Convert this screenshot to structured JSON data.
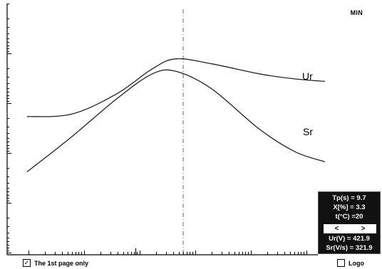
{
  "mode_label": "MIN",
  "info_panel": {
    "tp": "Tp(s) = 9.7",
    "x": "X[%] = 3.3",
    "t": "t(°C) =20",
    "nav_prev": "<",
    "nav_next": ">",
    "ur": "Ur(V) = 421.9",
    "sr": "Sr(V/s) = 321.9"
  },
  "footer": {
    "first_page_only_label": "The 1st page only",
    "first_page_only_checked": true,
    "logo_label": "Logo",
    "logo_checked": false
  },
  "chart_data": {
    "type": "line",
    "title": "",
    "xlabel": "",
    "ylabel": "",
    "x_scale": "log",
    "grid": false,
    "cursor_x": 0.5,
    "series": [
      {
        "name": "Ur",
        "points": [
          [
            0.0,
            0.55
          ],
          [
            0.15,
            0.56
          ],
          [
            0.3,
            0.64
          ],
          [
            0.42,
            0.74
          ],
          [
            0.5,
            0.78
          ],
          [
            0.62,
            0.76
          ],
          [
            0.78,
            0.72
          ],
          [
            0.9,
            0.7
          ],
          [
            1.0,
            0.69
          ]
        ]
      },
      {
        "name": "Sr",
        "points": [
          [
            0.0,
            0.33
          ],
          [
            0.15,
            0.47
          ],
          [
            0.3,
            0.62
          ],
          [
            0.42,
            0.72
          ],
          [
            0.5,
            0.73
          ],
          [
            0.62,
            0.66
          ],
          [
            0.78,
            0.5
          ],
          [
            0.9,
            0.41
          ],
          [
            1.0,
            0.37
          ]
        ]
      }
    ],
    "colors": {
      "curve": "#222222",
      "cursor": "#333333",
      "panel_bg": "#111111",
      "panel_text": "#ffffff"
    }
  }
}
